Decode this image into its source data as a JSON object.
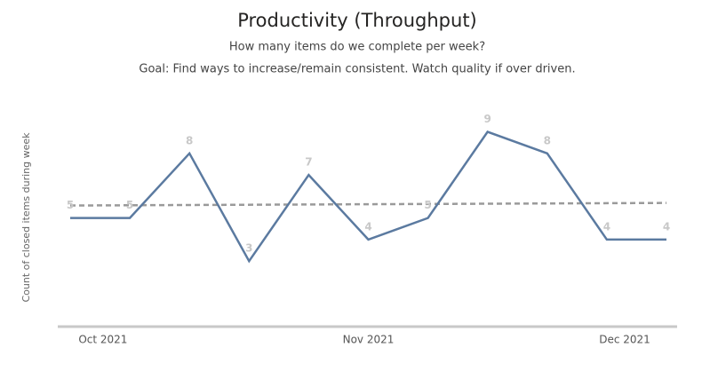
{
  "chart_data": {
    "type": "line",
    "title": "Productivity (Throughput)",
    "subtitle": "How many items do we complete per week?",
    "annotation": "Goal: Find ways to increase/remain consistent. Watch quality if over driven.",
    "y_label": "Count of closed items during week",
    "categories": [
      null,
      null,
      null,
      null,
      null,
      null,
      null,
      null,
      null,
      null,
      null
    ],
    "series": [
      {
        "color": "#5b7aa0",
        "values": [
          5,
          5,
          8,
          3,
          7,
          4,
          5,
          9,
          8,
          4,
          4
        ]
      }
    ],
    "trend": {
      "color": "#9a9a9a",
      "values": [
        5.58,
        5.7
      ]
    },
    "xticks": [
      {
        "value": 0.55,
        "label": "Oct 2021"
      },
      {
        "value": 5,
        "label": "Nov 2021"
      },
      {
        "value": 9.3,
        "label": "Dec 2021"
      }
    ],
    "ylim": [
      0,
      11
    ],
    "data_labels": true
  }
}
